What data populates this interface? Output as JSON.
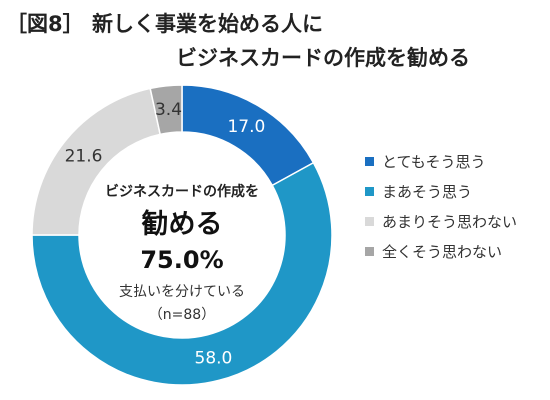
{
  "title": {
    "tag": "［図8］",
    "line1": "新しく事業を始める人に",
    "line2": "ビジネスカードの作成を勧める"
  },
  "center": {
    "line1": "ビジネスカードの作成を",
    "line2": "勧める",
    "value": "75.0%",
    "line3": "支払いを分けている",
    "note": "（n=88）"
  },
  "chart_data": {
    "type": "pie",
    "donut": true,
    "categories": [
      "とてもそう思う",
      "まあそう思う",
      "あまりそう思わない",
      "全くそう思わない"
    ],
    "values": [
      17.0,
      58.0,
      21.6,
      3.4
    ],
    "value_labels": [
      "17.0",
      "58.0",
      "21.6",
      "3.4"
    ],
    "colors": [
      "#1a6fc1",
      "#1f97c7",
      "#d9d9d9",
      "#a6a6a6"
    ],
    "label_colors": [
      "#ffffff",
      "#ffffff",
      "#333333",
      "#333333"
    ],
    "legend_position": "right"
  }
}
